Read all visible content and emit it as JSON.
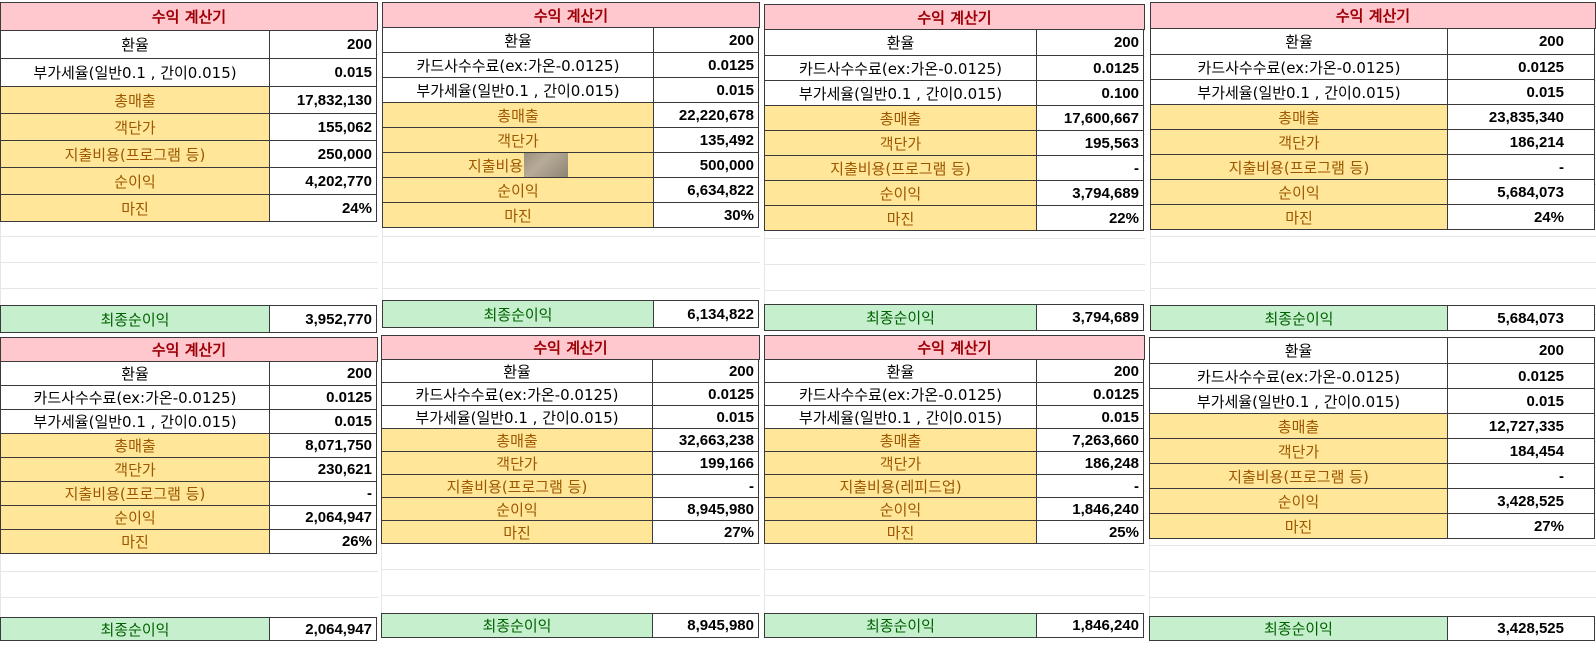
{
  "colors": {
    "title_bg": "#ffc7ce",
    "title_fg": "#9c0006",
    "highlight_bg": "#ffe699",
    "highlight_fg": "#9c5700",
    "final_bg": "#c6efce",
    "final_fg": "#006100"
  },
  "labels": {
    "title": "수익 계산기",
    "exchange": "환율",
    "card_fee": "카드사수수료(ex:가온-0.0125)",
    "vat": "부가세율(일반0.1 , 간이0.015)",
    "sales": "총매출",
    "unit_price": "객단가",
    "expense": "지출비용(프로그램 등)",
    "expense_partial": "지출비용",
    "expense_rapid": "지출비용(레피드업)",
    "net": "순이익",
    "margin": "마진",
    "final": "최종순이익"
  },
  "calculators": [
    {
      "exchange": "200",
      "vat": "0.015",
      "sales": "17,832,130",
      "unit_price": "155,062",
      "expense": "250,000",
      "net": "4,202,770",
      "margin": "24%",
      "final": "3,952,770"
    },
    {
      "exchange": "200",
      "card_fee": "0.0125",
      "vat": "0.015",
      "sales": "22,220,678",
      "unit_price": "135,492",
      "expense": "500,000",
      "net": "6,634,822",
      "margin": "30%",
      "final": "6,134,822"
    },
    {
      "exchange": "200",
      "card_fee": "0.0125",
      "vat": "0.100",
      "sales": "17,600,667",
      "unit_price": "195,563",
      "expense": "-",
      "net": "3,794,689",
      "margin": "22%",
      "final": "3,794,689"
    },
    {
      "exchange": "200",
      "card_fee": "0.0125",
      "vat": "0.015",
      "sales": "23,835,340",
      "unit_price": "186,214",
      "expense": "-",
      "net": "5,684,073",
      "margin": "24%",
      "final": "5,684,073"
    },
    {
      "exchange": "200",
      "card_fee": "0.0125",
      "vat": "0.015",
      "sales": "8,071,750",
      "unit_price": "230,621",
      "expense": "-",
      "net": "2,064,947",
      "margin": "26%",
      "final": "2,064,947"
    },
    {
      "exchange": "200",
      "card_fee": "0.0125",
      "vat": "0.015",
      "sales": "32,663,238",
      "unit_price": "199,166",
      "expense": "-",
      "net": "8,945,980",
      "margin": "27%",
      "final": "8,945,980"
    },
    {
      "exchange": "200",
      "card_fee": "0.0125",
      "vat": "0.015",
      "sales": "7,263,660",
      "unit_price": "186,248",
      "expense": "-",
      "net": "1,846,240",
      "margin": "25%",
      "final": "1,846,240"
    },
    {
      "exchange": "200",
      "card_fee": "0.0125",
      "vat": "0.015",
      "sales": "12,727,335",
      "unit_price": "184,454",
      "expense": "-",
      "net": "3,428,525",
      "margin": "27%",
      "final": "3,428,525"
    }
  ]
}
